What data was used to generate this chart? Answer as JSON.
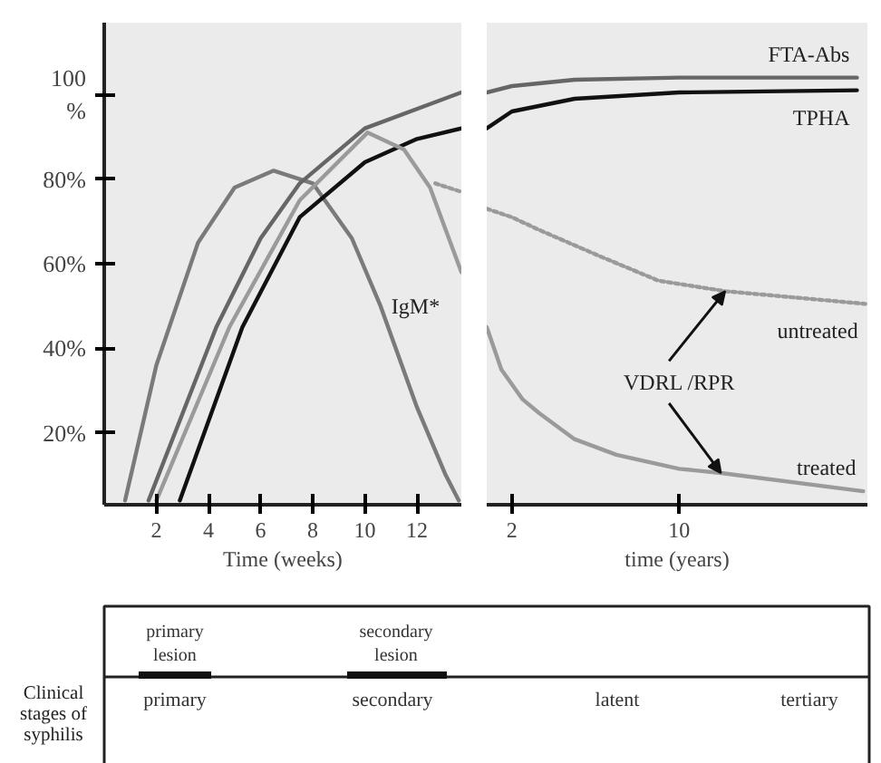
{
  "chart_data": [
    {
      "type": "line",
      "xlabel": "Time (weeks)",
      "xlim": [
        0,
        13.7
      ],
      "xticks": [
        2,
        4,
        6,
        8,
        10,
        12
      ],
      "ylim": [
        3,
        117
      ],
      "yticks": [
        {
          "value": 20,
          "label": "20%"
        },
        {
          "value": 40,
          "label": "40%"
        },
        {
          "value": 60,
          "label": "60%"
        },
        {
          "value": 80,
          "label": "80%"
        },
        {
          "value": 100,
          "label": "100\n%"
        }
      ],
      "line_style": "solid",
      "series": [
        {
          "name": "IgM*",
          "color": "#7a7a7a",
          "x": [
            0.8,
            2,
            3.6,
            5,
            6.5,
            8,
            9.5,
            10.6,
            12,
            13.1,
            13.6
          ],
          "values": [
            4,
            36,
            65,
            78,
            82,
            79,
            66,
            50,
            26,
            10,
            4
          ]
        },
        {
          "color": "#666666",
          "x": [
            1.7,
            4.3,
            6,
            7.5,
            10,
            13.7
          ],
          "values": [
            4,
            45,
            66,
            79,
            92,
            100.5
          ]
        },
        {
          "color": "#111111",
          "x": [
            2.9,
            5.3,
            7.5,
            10,
            12,
            13.7
          ],
          "values": [
            4,
            45,
            71,
            84,
            89.5,
            92
          ]
        },
        {
          "color": "#9a9a9a",
          "x": [
            2,
            4.8,
            7.5,
            10.1,
            11.5,
            12.5,
            13.7
          ],
          "values": [
            4,
            45,
            75,
            91,
            87,
            78,
            58
          ]
        },
        {
          "color": "#9a9a9a",
          "line_style": "dotted",
          "x": [
            12.7,
            13.7
          ],
          "values": [
            79,
            77
          ]
        }
      ]
    },
    {
      "type": "line",
      "xlabel": "time (years)",
      "xlim": [
        0.8,
        19
      ],
      "xticks": [
        2,
        10
      ],
      "ylim": [
        3,
        117
      ],
      "tick_labels": "x",
      "line_style": "solid",
      "annotations": [
        {
          "text": "VDRL /RPR",
          "x": 12.2,
          "y": 53.5
        }
      ],
      "series": [
        {
          "name": "FTA-Abs",
          "color": "#666666",
          "x": [
            0.8,
            2,
            5,
            10,
            18.5
          ],
          "values": [
            100.5,
            102,
            103.5,
            104,
            104
          ]
        },
        {
          "name": "TPHA",
          "color": "#111111",
          "x": [
            0.8,
            2,
            5,
            10,
            18.5
          ],
          "values": [
            92,
            96,
            99,
            100.5,
            101
          ]
        },
        {
          "name": "untreated",
          "color": "#9a9a9a",
          "line_style": "dotted",
          "x": [
            0.8,
            2,
            3.3,
            6.1,
            9,
            12.2,
            18.9
          ],
          "values": [
            73,
            71,
            68,
            62,
            56,
            53.5,
            50.5
          ]
        },
        {
          "name": "treated",
          "color": "#9a9a9a",
          "x": [
            0.8,
            1.5,
            2.5,
            3.3,
            5,
            7,
            10,
            12,
            18.8
          ],
          "values": [
            45,
            35,
            28,
            24.7,
            18.5,
            14.8,
            11.5,
            10.5,
            6.2
          ]
        }
      ]
    },
    {
      "type": "other",
      "title": "Clinical stages of syphilis",
      "annotations": [
        "primary lesion",
        "secondary lesion",
        "primary",
        "secondary",
        "latent",
        "tertiary"
      ]
    }
  ]
}
